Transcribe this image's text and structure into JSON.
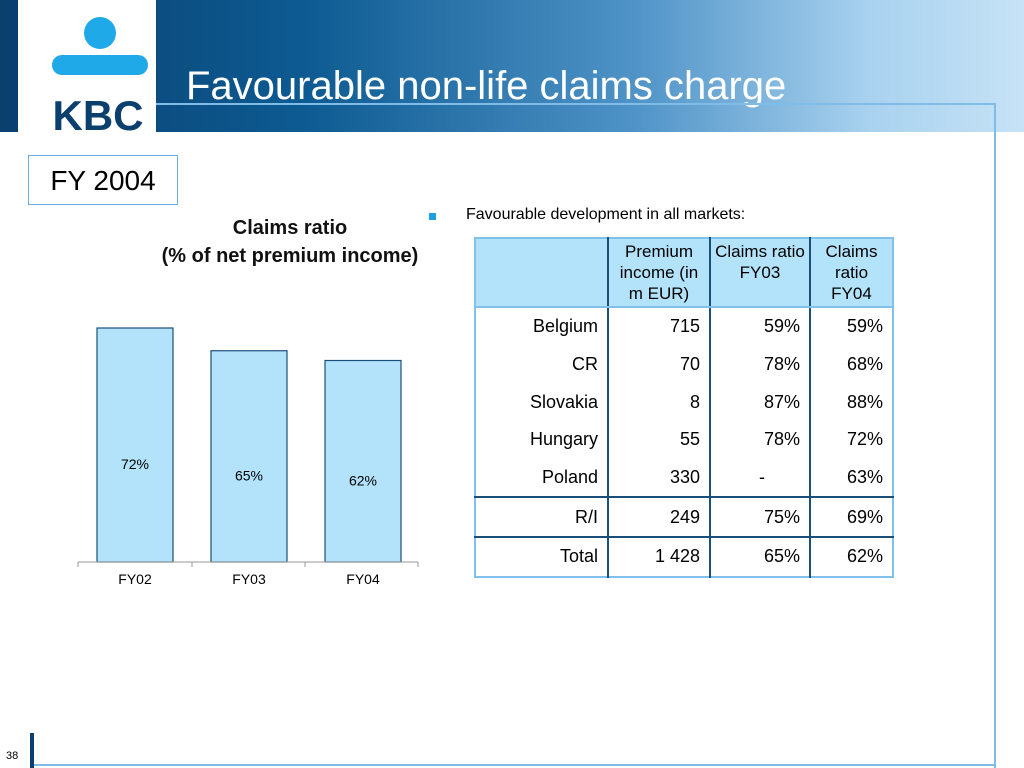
{
  "header": {
    "title": "Favourable non-life claims charge"
  },
  "logo": {
    "text": "KBC",
    "icon": "kbc-logo"
  },
  "period_box": {
    "label": "FY 2004"
  },
  "bullet": {
    "text": "Favourable development in all markets:"
  },
  "chart_data": {
    "type": "bar",
    "title": [
      "Claims ratio",
      "(% of net premium income)"
    ],
    "categories": [
      "FY02",
      "FY03",
      "FY04"
    ],
    "values": [
      72,
      65,
      62
    ],
    "value_labels": [
      "72%",
      "65%",
      "62%"
    ],
    "unit": "%",
    "bar_color": "#b3e3fb",
    "bar_stroke": "#1a4f7a",
    "grid": false,
    "legend": "none"
  },
  "table": {
    "headers": [
      "",
      "Premium income (in m EUR)",
      "Claims ratio FY03",
      "Claims ratio FY04"
    ],
    "rows": [
      {
        "market": "Belgium",
        "premium": "715",
        "fy03": "59%",
        "fy04": "59%"
      },
      {
        "market": "CR",
        "premium": "70",
        "fy03": "78%",
        "fy04": "68%"
      },
      {
        "market": "Slovakia",
        "premium": "8",
        "fy03": "87%",
        "fy04": "88%"
      },
      {
        "market": "Hungary",
        "premium": "55",
        "fy03": "78%",
        "fy04": "72%"
      },
      {
        "market": "Poland",
        "premium": "330",
        "fy03": "-",
        "fy04": "63%"
      },
      {
        "market": "R/I",
        "premium": "249",
        "fy03": "75%",
        "fy04": "69%"
      },
      {
        "market": "Total",
        "premium": "1 428",
        "fy03": "65%",
        "fy04": "62%"
      }
    ],
    "header_bg": "#b3e3fb",
    "border_color": "#7fc1ea"
  },
  "footer": {
    "page_number": "38"
  }
}
